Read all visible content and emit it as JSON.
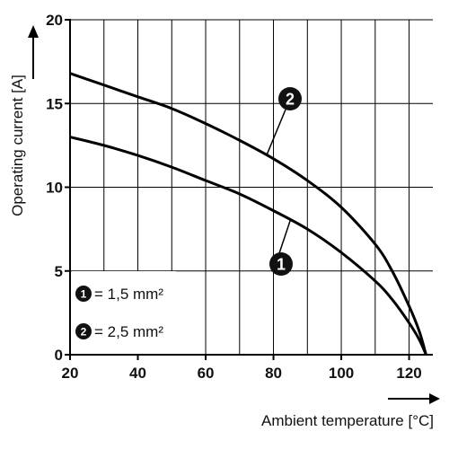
{
  "chart_data": {
    "type": "line",
    "xlabel": "Ambient temperature [°C]",
    "ylabel": "Operating current [A]",
    "xlim": [
      20,
      127
    ],
    "ylim": [
      0,
      20
    ],
    "xticks": [
      "20",
      "40",
      "60",
      "80",
      "100",
      "120"
    ],
    "yticks": [
      "0",
      "5",
      "10",
      "15",
      "20"
    ],
    "grid": true,
    "legend_position": "bottom-left",
    "series": [
      {
        "marker": "1",
        "name": "= 1,5 mm²",
        "x": [
          20,
          30,
          40,
          50,
          60,
          70,
          80,
          90,
          100,
          110,
          115,
          120,
          123,
          125
        ],
        "y": [
          13.0,
          12.5,
          11.9,
          11.2,
          10.4,
          9.6,
          8.6,
          7.5,
          6.1,
          4.4,
          3.3,
          1.9,
          0.9,
          0.0
        ]
      },
      {
        "marker": "2",
        "name": "= 2,5 mm²",
        "x": [
          20,
          30,
          40,
          50,
          60,
          70,
          80,
          90,
          100,
          110,
          115,
          120,
          123,
          125
        ],
        "y": [
          16.8,
          16.1,
          15.4,
          14.7,
          13.8,
          12.8,
          11.7,
          10.4,
          8.8,
          6.6,
          5.0,
          2.9,
          1.4,
          0.0
        ]
      }
    ],
    "callouts": [
      "2",
      "1"
    ]
  }
}
